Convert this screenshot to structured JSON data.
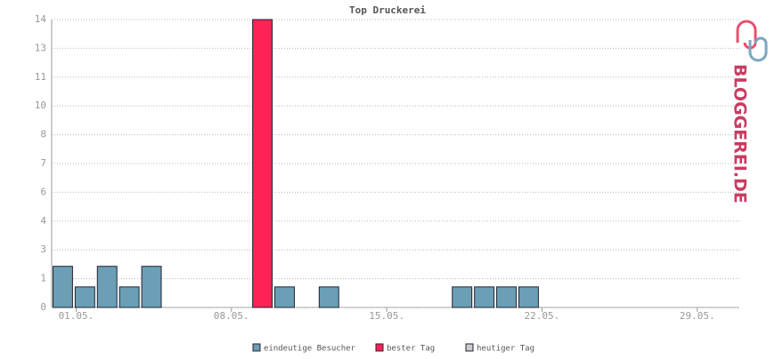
{
  "chart_data": {
    "type": "bar",
    "title": "Top Druckerei",
    "categories": [
      "01.05.",
      null,
      null,
      null,
      null,
      null,
      null,
      "08.05.",
      null,
      null,
      null,
      null,
      null,
      null,
      "15.05.",
      null,
      null,
      null,
      null,
      null,
      null,
      "22.05.",
      null,
      null,
      null,
      null,
      null,
      null,
      "29.05.",
      null,
      null
    ],
    "values": [
      2,
      1,
      2,
      1,
      2,
      0,
      0,
      0,
      0,
      14,
      1,
      0,
      1,
      0,
      0,
      0,
      0,
      0,
      1,
      1,
      1,
      1,
      0,
      0,
      0,
      0,
      0,
      0,
      0,
      0,
      0
    ],
    "colors": [
      "#6a9fb5",
      "#6a9fb5",
      "#6a9fb5",
      "#6a9fb5",
      "#6a9fb5",
      "#6a9fb5",
      "#6a9fb5",
      "#6a9fb5",
      "#6a9fb5",
      "#ff2255",
      "#6a9fb5",
      "#6a9fb5",
      "#6a9fb5",
      "#6a9fb5",
      "#6a9fb5",
      "#6a9fb5",
      "#6a9fb5",
      "#6a9fb5",
      "#6a9fb5",
      "#6a9fb5",
      "#6a9fb5",
      "#6a9fb5",
      "#6a9fb5",
      "#6a9fb5",
      "#6a9fb5",
      "#6a9fb5",
      "#6a9fb5",
      "#6a9fb5",
      "#6a9fb5",
      "#6a9fb5",
      "#6a9fb5"
    ],
    "ylim": [
      0,
      14
    ],
    "yticks": [
      0,
      {
        "value": 1.4,
        "label": "1"
      },
      {
        "value": 2.8,
        "label": "3"
      },
      {
        "value": 4.2,
        "label": "4"
      },
      {
        "value": 5.6,
        "label": "6"
      },
      7,
      {
        "value": 8.4,
        "label": "8"
      },
      {
        "value": 9.8,
        "label": "10"
      },
      {
        "value": 11.2,
        "label": "11"
      },
      {
        "value": 12.6,
        "label": "13"
      },
      14
    ],
    "grid": true,
    "legend": [
      {
        "label": "eindeutige Besucher",
        "color": "#6a9fb5"
      },
      {
        "label": "bester Tag",
        "color": "#ff2255"
      },
      {
        "label": "heutiger Tag",
        "color": "#cccccc"
      }
    ],
    "logo": "BLOGGEREI.DE"
  }
}
